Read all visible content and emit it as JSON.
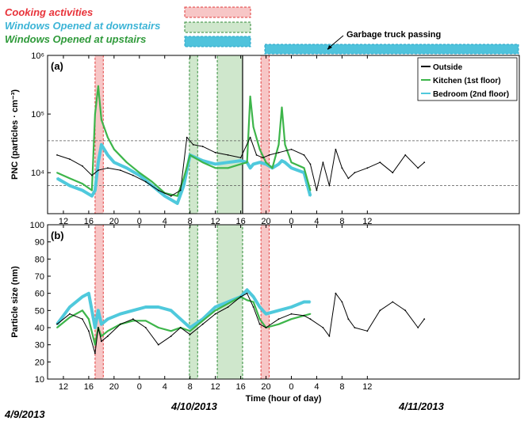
{
  "legend_top": {
    "cooking": "Cooking activities",
    "down": "Windows Opened at downstairs",
    "up": "Windows Opened at upstairs",
    "truck": "Garbage truck passing"
  },
  "colors": {
    "cooking_text": "#e8333a",
    "down_text": "#3cb4d6",
    "up_text": "#2f9a3a",
    "cooking_fill": "#f7c6c6",
    "cooking_edge": "#e23b3b",
    "up_fill": "#cfe7cc",
    "up_edge": "#2f8a36",
    "down_fill": "#4fc3dc",
    "down_edge": "#2aa6c8",
    "outside": "#000000",
    "kitchen": "#3db54a",
    "bedroom": "#4fc9dc"
  },
  "dates": [
    "4/9/2013",
    "4/10/2013",
    "4/11/2013"
  ],
  "chart_data": [
    {
      "id": "a",
      "panel_label": "(a)",
      "type": "line",
      "ylabel": "PNC (particles · cm⁻³)",
      "yscale": "log",
      "ylim": [
        2000,
        1000000
      ],
      "yticks": [
        "10⁴",
        "10⁵",
        "10⁶"
      ],
      "reference_lines": [
        6000,
        35000
      ],
      "xlim": [
        9.5,
        84
      ],
      "xtick_labels": [
        "12",
        "16",
        "20",
        "0",
        "4",
        "8",
        "12",
        "16",
        "20",
        "0",
        "4",
        "8",
        "12"
      ],
      "legend": [
        "Outside",
        "Kitchen (1st floor)",
        "Bedroom (2nd floor)"
      ],
      "series": [
        {
          "name": "Outside",
          "x": [
            11,
            13,
            15,
            16.5,
            17.5,
            19,
            21,
            23,
            25,
            27,
            29,
            30.5,
            31.5,
            32.5,
            34,
            36,
            38,
            40,
            41.5,
            42.5,
            43.5,
            44.5,
            46,
            48,
            50,
            51,
            52,
            53,
            54,
            55,
            56,
            57,
            58,
            60,
            62,
            64,
            66,
            68,
            69
          ],
          "y": [
            20000,
            17000,
            13000,
            9000,
            11000,
            12000,
            11000,
            9000,
            7000,
            5000,
            4000,
            5000,
            40000,
            30000,
            28000,
            22000,
            20000,
            18000,
            40000,
            20000,
            18000,
            20000,
            22000,
            25000,
            20000,
            14000,
            5000,
            15000,
            6000,
            25000,
            12000,
            8000,
            10000,
            12000,
            15000,
            10000,
            20000,
            12000,
            15000
          ]
        },
        {
          "name": "Kitchen (1st floor)",
          "x": [
            11,
            13,
            15,
            16.5,
            17,
            17.5,
            18,
            19,
            20,
            22,
            24,
            26,
            28,
            30,
            31,
            32,
            34,
            36,
            38,
            40,
            41,
            41.5,
            42,
            43,
            44,
            45,
            46,
            46.5,
            47,
            48,
            50,
            51
          ],
          "y": [
            10000,
            8000,
            6500,
            5000,
            100000,
            300000,
            80000,
            40000,
            25000,
            15000,
            10000,
            7000,
            4500,
            4000,
            8000,
            20000,
            15000,
            12000,
            12000,
            14000,
            15000,
            200000,
            60000,
            25000,
            15000,
            12000,
            30000,
            130000,
            30000,
            15000,
            12000,
            5000
          ]
        },
        {
          "name": "Bedroom (2nd floor)",
          "x": [
            11,
            13,
            15,
            16.5,
            17,
            17.5,
            18,
            19,
            20,
            22,
            24,
            26,
            28,
            30,
            31,
            32,
            34,
            36,
            38,
            40,
            41,
            41.5,
            42,
            43,
            44,
            45,
            46,
            46.5,
            47,
            48,
            50,
            51
          ],
          "y": [
            8000,
            6000,
            5000,
            4000,
            5000,
            15000,
            30000,
            20000,
            15000,
            12000,
            9000,
            6000,
            4000,
            3000,
            6000,
            20000,
            16000,
            14000,
            15000,
            16000,
            15000,
            12000,
            14000,
            15000,
            14000,
            12000,
            14000,
            16000,
            15000,
            12000,
            10000,
            4000
          ]
        }
      ]
    },
    {
      "id": "b",
      "panel_label": "(b)",
      "type": "line",
      "ylabel": "Particle size (nm)",
      "ylim": [
        10,
        100
      ],
      "yticks": [
        10,
        20,
        30,
        40,
        50,
        60,
        70,
        80,
        90,
        100
      ],
      "xlabel": "Time (hour of day)",
      "xlim": [
        9.5,
        84
      ],
      "xtick_labels": [
        "12",
        "16",
        "20",
        "0",
        "4",
        "8",
        "12",
        "16",
        "20",
        "0",
        "4",
        "8",
        "12"
      ],
      "series": [
        {
          "name": "Outside",
          "x": [
            11,
            13,
            15,
            16,
            17,
            17.5,
            18,
            19,
            21,
            23,
            25,
            27,
            29,
            30.5,
            32,
            34,
            36,
            38,
            40,
            41,
            42,
            43,
            44,
            46,
            48,
            50,
            51,
            53,
            54,
            55,
            56,
            57,
            58,
            60,
            62,
            64,
            66,
            68,
            69
          ],
          "y": [
            42,
            48,
            45,
            38,
            25,
            40,
            32,
            35,
            42,
            45,
            40,
            30,
            35,
            40,
            36,
            42,
            48,
            52,
            58,
            60,
            52,
            42,
            40,
            45,
            48,
            47,
            45,
            40,
            35,
            60,
            55,
            45,
            40,
            38,
            50,
            55,
            50,
            40,
            45
          ]
        },
        {
          "name": "Kitchen (1st floor)",
          "x": [
            11,
            13,
            15,
            16,
            17,
            17.5,
            18,
            19,
            21,
            23,
            25,
            27,
            29,
            30.5,
            32,
            34,
            36,
            38,
            40,
            41,
            42,
            43,
            44,
            46,
            48,
            50,
            51
          ],
          "y": [
            40,
            46,
            50,
            45,
            30,
            40,
            35,
            38,
            42,
            44,
            44,
            40,
            38,
            40,
            38,
            44,
            50,
            54,
            58,
            56,
            55,
            45,
            40,
            42,
            45,
            47,
            48
          ]
        },
        {
          "name": "Bedroom (2nd floor)",
          "x": [
            11,
            13,
            15,
            16,
            17,
            17.5,
            18,
            19,
            21,
            23,
            25,
            27,
            29,
            30.5,
            32,
            34,
            36,
            38,
            40,
            41,
            42,
            43,
            44,
            46,
            48,
            50,
            51
          ],
          "y": [
            42,
            52,
            58,
            60,
            40,
            50,
            42,
            45,
            48,
            50,
            52,
            52,
            50,
            45,
            40,
            45,
            52,
            55,
            58,
            62,
            58,
            52,
            48,
            50,
            52,
            55,
            55
          ]
        }
      ]
    }
  ],
  "bands": {
    "cooking": [
      [
        17,
        18.3
      ],
      [
        43.2,
        44.5
      ]
    ],
    "upstairs": [
      [
        31.9,
        33.2
      ],
      [
        36.3,
        40.3
      ]
    ],
    "downstairs": [
      [
        33,
        84
      ]
    ],
    "truck_x": 40.3
  }
}
